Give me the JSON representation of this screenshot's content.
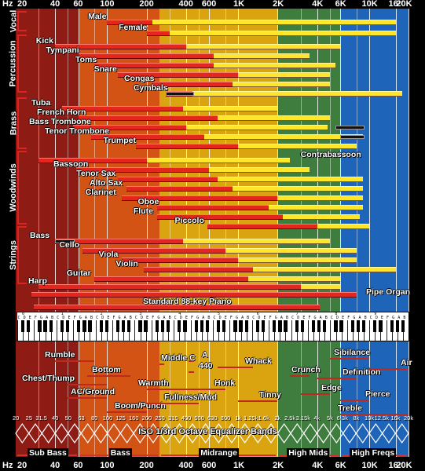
{
  "axis": {
    "unit": "Hz",
    "ticks": [
      {
        "label": "20",
        "hz": 20
      },
      {
        "label": "40",
        "hz": 40
      },
      {
        "label": "60",
        "hz": 60
      },
      {
        "label": "100",
        "hz": 100
      },
      {
        "label": "200",
        "hz": 200
      },
      {
        "label": "400",
        "hz": 400
      },
      {
        "label": "600",
        "hz": 600
      },
      {
        "label": "1K",
        "hz": 1000
      },
      {
        "label": "2K",
        "hz": 2000
      },
      {
        "label": "4K",
        "hz": 4000
      },
      {
        "label": "6K",
        "hz": 6000
      },
      {
        "label": "10K",
        "hz": 10000
      },
      {
        "label": "16K",
        "hz": 16000
      },
      {
        "label": "20K",
        "hz": 20000
      }
    ]
  },
  "bands": [
    {
      "from": 20,
      "to": 60,
      "color": "#8e1b14"
    },
    {
      "from": 60,
      "to": 250,
      "color": "#d25314"
    },
    {
      "from": 250,
      "to": 2000,
      "color": "#d9a40f"
    },
    {
      "from": 2000,
      "to": 6000,
      "color": "#3f7d3e"
    },
    {
      "from": 6000,
      "to": 20000,
      "color": "#1e64b8"
    }
  ],
  "groups": [
    {
      "name": "Vocal"
    },
    {
      "name": "Percussion"
    },
    {
      "name": "Brass"
    },
    {
      "name": "Woodwinds"
    },
    {
      "name": "Strings"
    }
  ],
  "instruments": [
    {
      "name": "Male",
      "group": "Vocal",
      "fund": [
        100,
        1000
      ],
      "harm": [
        220,
        16000
      ]
    },
    {
      "name": "Female",
      "group": "Vocal",
      "fund": [
        200,
        1200
      ],
      "harm": [
        300,
        16000
      ]
    },
    {
      "name": "Kick",
      "group": "Percussion",
      "fund": [
        40,
        400
      ],
      "harm": [
        400,
        6000
      ]
    },
    {
      "name": "Tympani",
      "group": "Percussion",
      "fund": [
        60,
        650
      ],
      "harm": [
        650,
        3500
      ]
    },
    {
      "name": "Toms",
      "group": "Percussion",
      "fund": [
        80,
        650
      ],
      "harm": [
        650,
        5500
      ]
    },
    {
      "name": "Snare",
      "group": "Percussion",
      "fund": [
        120,
        1000
      ],
      "harm": [
        1000,
        5000
      ]
    },
    {
      "name": "Congas",
      "group": "Percussion",
      "fund": [
        220,
        900
      ],
      "harm": [
        900,
        5000
      ]
    },
    {
      "name": "Cymbals",
      "group": "Percussion",
      "fund": [
        280,
        450
      ],
      "harm": [
        450,
        18000
      ]
    },
    {
      "name": "Tuba",
      "group": "Brass",
      "fund": [
        45,
        380
      ],
      "harm": [
        380,
        2000
      ]
    },
    {
      "name": "French Horn",
      "group": "Brass",
      "fund": [
        60,
        700
      ],
      "harm": [
        700,
        5000
      ]
    },
    {
      "name": "Bass Trombone",
      "group": "Brass",
      "fund": [
        55,
        400
      ],
      "harm": [
        400,
        4800
      ]
    },
    {
      "name": "Tenor Trombone",
      "group": "Brass",
      "fund": [
        75,
        550
      ],
      "harm": [
        550,
        9000
      ]
    },
    {
      "name": "Trumpet",
      "group": "Brass",
      "fund": [
        165,
        1000
      ],
      "harm": [
        1000,
        8000
      ]
    },
    {
      "name": "Contrabassoon",
      "group": "Woodwinds",
      "fund": [
        30,
        200
      ],
      "harm": [
        200,
        2500
      ]
    },
    {
      "name": "Bassoon",
      "group": "Woodwinds",
      "fund": [
        58,
        600
      ],
      "harm": [
        600,
        3500
      ]
    },
    {
      "name": "Tenor Sax",
      "group": "Woodwinds",
      "fund": [
        120,
        700
      ],
      "harm": [
        700,
        9000
      ]
    },
    {
      "name": "Alto Sax",
      "group": "Woodwinds",
      "fund": [
        140,
        900
      ],
      "harm": [
        900,
        9000
      ]
    },
    {
      "name": "Clarinet",
      "group": "Woodwinds",
      "fund": [
        130,
        2000
      ],
      "harm": [
        2000,
        9000
      ]
    },
    {
      "name": "Oboe",
      "group": "Woodwinds",
      "fund": [
        240,
        1700
      ],
      "harm": [
        1700,
        9000
      ]
    },
    {
      "name": "Flute",
      "group": "Woodwinds",
      "fund": [
        240,
        2200
      ],
      "harm": [
        2200,
        8500
      ]
    },
    {
      "name": "Piccolo",
      "group": "Woodwinds",
      "fund": [
        580,
        4000
      ],
      "harm": [
        4000,
        10000
      ]
    },
    {
      "name": "Bass",
      "group": "Strings",
      "fund": [
        40,
        380
      ],
      "harm": [
        380,
        5000
      ]
    },
    {
      "name": "Cello",
      "group": "Strings",
      "fund": [
        65,
        800
      ],
      "harm": [
        800,
        8000
      ]
    },
    {
      "name": "Viola",
      "group": "Strings",
      "fund": [
        130,
        1000
      ],
      "harm": [
        1000,
        8000
      ]
    },
    {
      "name": "Violin",
      "group": "Strings",
      "fund": [
        190,
        1300
      ],
      "harm": [
        1300,
        16000
      ]
    },
    {
      "name": "Guitar",
      "group": "Strings",
      "fund": [
        80,
        1200
      ],
      "harm": [
        1200,
        6000
      ]
    },
    {
      "name": "Harp",
      "group": "Strings",
      "fund": [
        30,
        3000
      ],
      "harm": [
        3000,
        6000
      ]
    }
  ],
  "pipe_organ": {
    "name": "Pipe Organ",
    "range": [
      20,
      8000
    ]
  },
  "piano": {
    "name": "Standard 88-key Piano",
    "range": [
      27.5,
      4186
    ],
    "octaves": [
      "0",
      "1",
      "2",
      "3",
      "4",
      "5",
      "6",
      "7",
      "8",
      "9"
    ],
    "notes": "CDEFGAB"
  },
  "descriptors": [
    {
      "text": "Rumble",
      "from": 40,
      "to": 80
    },
    {
      "text": "Chest/Thump",
      "from": 50,
      "to": 100
    },
    {
      "text": "Bottom",
      "from": 70,
      "to": 150
    },
    {
      "text": "AC/Ground",
      "from": 50,
      "to": 100
    },
    {
      "text": "Boom/Punch",
      "from": 100,
      "to": 200
    },
    {
      "text": "Warmth",
      "from": 200,
      "to": 400
    },
    {
      "text": "Middle C",
      "from": 250,
      "to": 270
    },
    {
      "text": "A",
      "from": 420,
      "to": 460
    },
    {
      "text": "440",
      "from": 420,
      "to": 460
    },
    {
      "text": "Fullness/Mud",
      "from": 200,
      "to": 500
    },
    {
      "text": "Honk",
      "from": 400,
      "to": 800
    },
    {
      "text": "Whack",
      "from": 700,
      "to": 1300
    },
    {
      "text": "Tinny",
      "from": 1000,
      "to": 2000
    },
    {
      "text": "Crunch",
      "from": 2500,
      "to": 3500
    },
    {
      "text": "Edge",
      "from": 3000,
      "to": 5000
    },
    {
      "text": "Sibilance",
      "from": 5000,
      "to": 10000
    },
    {
      "text": "Definition",
      "from": 4000,
      "to": 8000
    },
    {
      "text": "Pierce",
      "from": 6000,
      "to": 10000
    },
    {
      "text": "Air",
      "from": 10000,
      "to": 20000
    },
    {
      "text": "Treble",
      "from": 6000,
      "to": 20000
    }
  ],
  "eq": {
    "title": "ISO 1/3rd Octave Equalizer Bands",
    "bands": [
      "20",
      "25",
      "31.5",
      "40",
      "50",
      "63",
      "80",
      "100",
      "125",
      "160",
      "200",
      "250",
      "315",
      "400",
      "500",
      "630",
      "800",
      "1k",
      "1.25k",
      "1.6k",
      "2k",
      "2.5k",
      "3.15k",
      "4k",
      "5k",
      "6.3k",
      "8k",
      "10k",
      "12.5k",
      "16k",
      "20k"
    ]
  },
  "tiers": [
    {
      "label": "Sub Bass",
      "from": 20,
      "to": 60
    },
    {
      "label": "Bass",
      "from": 60,
      "to": 250
    },
    {
      "label": "Midrange",
      "from": 250,
      "to": 2000
    },
    {
      "label": "High Mids",
      "from": 2000,
      "to": 6000
    },
    {
      "label": "High Freqs",
      "from": 6000,
      "to": 20000
    }
  ]
}
